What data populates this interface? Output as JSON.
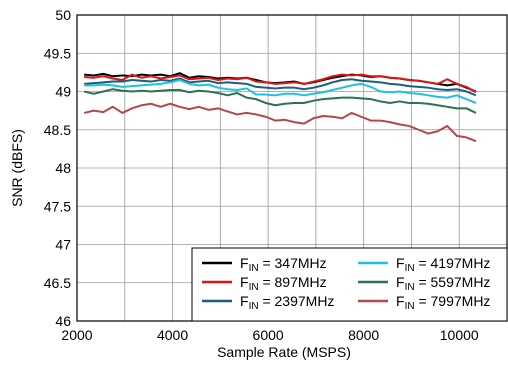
{
  "chart_data": {
    "type": "line",
    "xlabel": "Sample Rate  (MSPS)",
    "ylabel": "SNR  (dBFS)",
    "xlim": [
      2000,
      11000
    ],
    "ylim": [
      46,
      50
    ],
    "x_ticks": [
      "2000",
      "4000",
      "6000",
      "8000",
      "10000"
    ],
    "y_ticks": [
      "46",
      "46.5",
      "47",
      "47.5",
      "48",
      "48.5",
      "49",
      "49.5",
      "50"
    ],
    "grid": true,
    "legend_position": "bottom-right",
    "x": [
      2150,
      2350,
      2550,
      2750,
      2950,
      3150,
      3350,
      3550,
      3750,
      3950,
      4150,
      4350,
      4550,
      4750,
      4950,
      5150,
      5350,
      5550,
      5750,
      5950,
      6150,
      6350,
      6550,
      6750,
      6950,
      7150,
      7350,
      7550,
      7750,
      7950,
      8150,
      8350,
      8550,
      8750,
      8950,
      9150,
      9350,
      9550,
      9750,
      9950,
      10150,
      10350
    ],
    "series": [
      {
        "name": "347MHz",
        "color": "#000000",
        "values": [
          49.22,
          49.21,
          49.23,
          49.2,
          49.21,
          49.2,
          49.22,
          49.21,
          49.22,
          49.2,
          49.24,
          49.18,
          49.2,
          49.19,
          49.17,
          49.18,
          49.17,
          49.18,
          49.15,
          49.12,
          49.11,
          49.12,
          49.13,
          49.1,
          49.12,
          49.15,
          49.18,
          49.2,
          49.22,
          49.21,
          49.19,
          49.2,
          49.18,
          49.17,
          49.15,
          49.14,
          49.12,
          49.1,
          49.08,
          49.1,
          49.05,
          49.0
        ]
      },
      {
        "name": "897MHz",
        "color": "#e01414",
        "values": [
          49.19,
          49.18,
          49.2,
          49.17,
          49.15,
          49.22,
          49.18,
          49.2,
          49.17,
          49.19,
          49.21,
          49.16,
          49.17,
          49.18,
          49.15,
          49.17,
          49.16,
          49.18,
          49.13,
          49.12,
          49.1,
          49.11,
          49.12,
          49.1,
          49.13,
          49.16,
          49.2,
          49.22,
          49.21,
          49.22,
          49.2,
          49.2,
          49.18,
          49.17,
          49.15,
          49.14,
          49.12,
          49.1,
          49.16,
          49.1,
          49.06,
          48.99
        ]
      },
      {
        "name": "2397MHz",
        "color": "#1a5f80",
        "values": [
          49.1,
          49.11,
          49.12,
          49.13,
          49.13,
          49.15,
          49.14,
          49.13,
          49.15,
          49.14,
          49.17,
          49.12,
          49.13,
          49.14,
          49.11,
          49.12,
          49.11,
          49.1,
          49.06,
          49.05,
          49.04,
          49.05,
          49.05,
          49.03,
          49.05,
          49.08,
          49.12,
          49.15,
          49.16,
          49.14,
          49.13,
          49.12,
          49.1,
          49.09,
          49.07,
          49.06,
          49.05,
          49.03,
          49.02,
          49.03,
          49.0,
          48.95
        ]
      },
      {
        "name": "4197MHz",
        "color": "#21bfe0",
        "values": [
          49.08,
          49.08,
          49.09,
          49.08,
          49.06,
          49.07,
          49.08,
          49.09,
          49.1,
          49.12,
          49.15,
          49.1,
          49.08,
          49.09,
          49.05,
          49.03,
          49.02,
          49.04,
          48.96,
          48.96,
          48.95,
          48.97,
          48.97,
          48.95,
          48.97,
          48.99,
          49.02,
          49.05,
          49.08,
          49.1,
          49.06,
          49.0,
          48.99,
          49.0,
          48.98,
          48.97,
          48.95,
          48.93,
          48.92,
          48.95,
          48.9,
          48.85
        ]
      },
      {
        "name": "5597MHz",
        "color": "#2e7252",
        "values": [
          49.0,
          48.97,
          49.0,
          49.03,
          49.01,
          49.0,
          49.01,
          49.0,
          49.01,
          49.02,
          49.02,
          48.99,
          49.01,
          49.0,
          48.98,
          48.95,
          48.98,
          48.92,
          48.9,
          48.85,
          48.82,
          48.84,
          48.85,
          48.85,
          48.88,
          48.9,
          48.91,
          48.92,
          48.92,
          48.91,
          48.9,
          48.87,
          48.85,
          48.87,
          48.85,
          48.85,
          48.84,
          48.82,
          48.8,
          48.78,
          48.78,
          48.72
        ]
      },
      {
        "name": "7997MHz",
        "color": "#b4474f",
        "values": [
          48.72,
          48.75,
          48.73,
          48.8,
          48.72,
          48.78,
          48.82,
          48.84,
          48.8,
          48.84,
          48.8,
          48.77,
          48.8,
          48.76,
          48.78,
          48.74,
          48.7,
          48.72,
          48.7,
          48.67,
          48.62,
          48.63,
          48.6,
          48.58,
          48.65,
          48.68,
          48.67,
          48.65,
          48.72,
          48.67,
          48.62,
          48.62,
          48.6,
          48.57,
          48.55,
          48.5,
          48.45,
          48.48,
          48.55,
          48.42,
          48.4,
          48.35
        ]
      }
    ]
  },
  "legend": {
    "prefix": "F",
    "sub": "IN",
    "eq": " = ",
    "labels": [
      "347MHz",
      "897MHz",
      "2397MHz",
      "4197MHz",
      "5597MHz",
      "7997MHz"
    ]
  }
}
